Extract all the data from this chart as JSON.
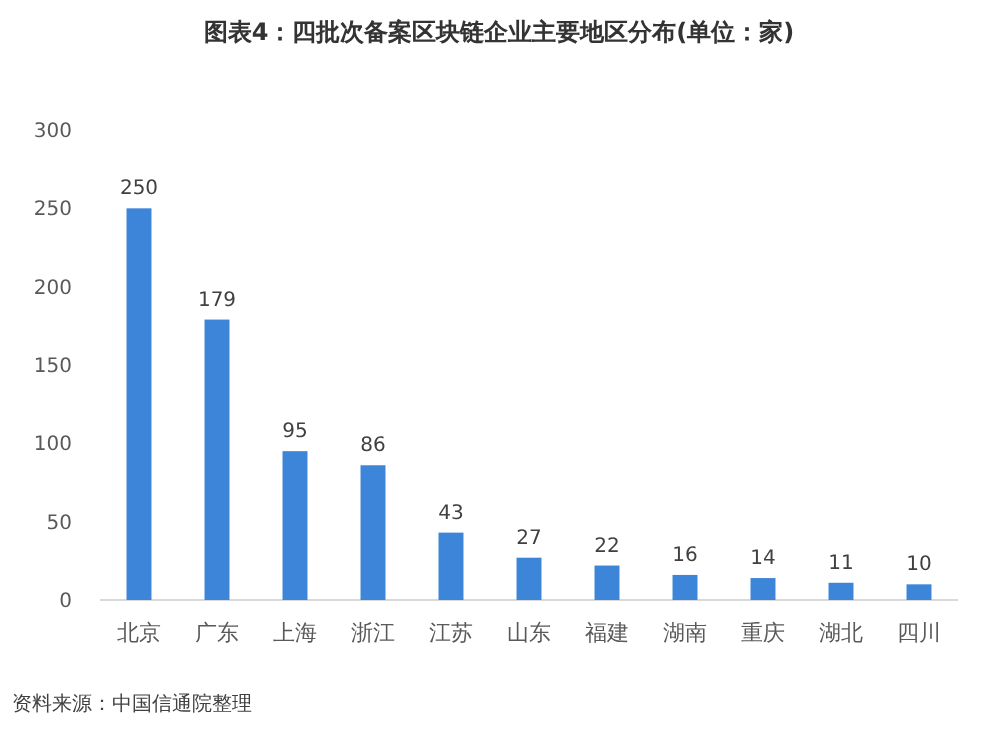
{
  "chart_data": {
    "type": "bar",
    "title": "图表4：四批次备案区块链企业主要地区分布(单位：家)",
    "categories": [
      "北京",
      "广东",
      "上海",
      "浙江",
      "江苏",
      "山东",
      "福建",
      "湖南",
      "重庆",
      "湖北",
      "四川"
    ],
    "values": [
      250,
      179,
      95,
      86,
      43,
      27,
      22,
      16,
      14,
      11,
      10
    ],
    "color": "#3d85d8",
    "ylim": [
      0,
      300
    ],
    "yticks": [
      0,
      50,
      100,
      150,
      200,
      250,
      300
    ],
    "data_labels": true,
    "annotations": [
      "资料来源：中国信通院整理"
    ]
  }
}
